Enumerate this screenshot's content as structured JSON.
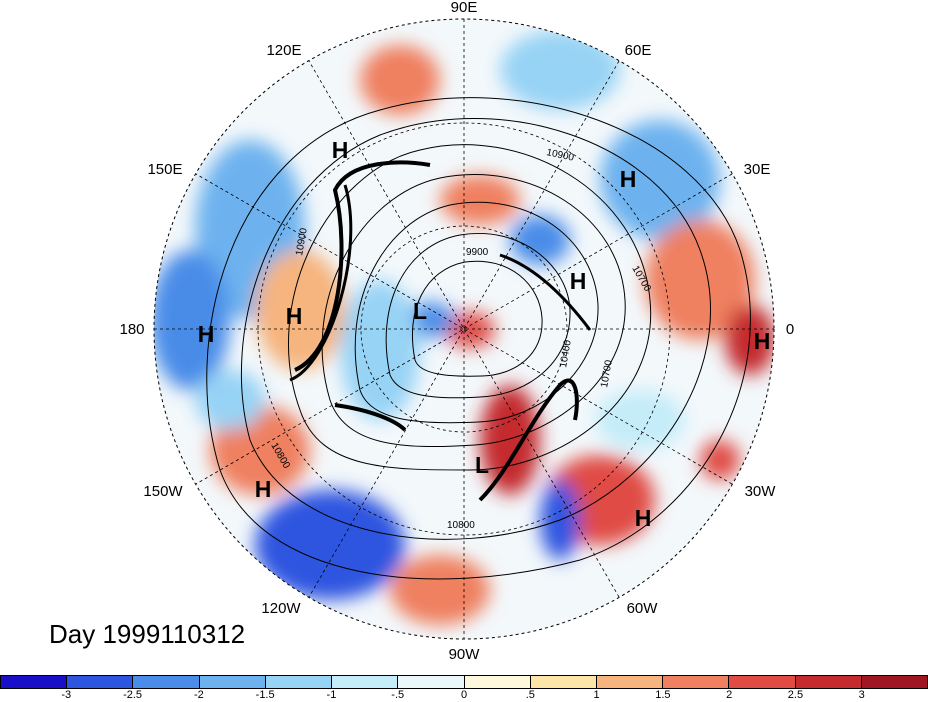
{
  "map": {
    "title": "Day 1999110312",
    "longitude_labels": [
      {
        "id": "lon-90e",
        "text": "90E"
      },
      {
        "id": "lon-60e",
        "text": "60E"
      },
      {
        "id": "lon-30e",
        "text": "30E"
      },
      {
        "id": "lon-0",
        "text": "0"
      },
      {
        "id": "lon-30w",
        "text": "30W"
      },
      {
        "id": "lon-60w",
        "text": "60W"
      },
      {
        "id": "lon-90w",
        "text": "90W"
      },
      {
        "id": "lon-120w",
        "text": "120W"
      },
      {
        "id": "lon-150w",
        "text": "150W"
      },
      {
        "id": "lon-180",
        "text": "180"
      },
      {
        "id": "lon-150e",
        "text": "150E"
      },
      {
        "id": "lon-120e",
        "text": "120E"
      }
    ],
    "pressure_centers": [
      {
        "id": "h-1",
        "text": "H"
      },
      {
        "id": "h-2",
        "text": "H"
      },
      {
        "id": "h-3",
        "text": "H"
      },
      {
        "id": "h-4",
        "text": "H"
      },
      {
        "id": "h-5",
        "text": "H"
      },
      {
        "id": "h-6",
        "text": "H"
      },
      {
        "id": "h-7",
        "text": "H"
      },
      {
        "id": "h-8",
        "text": "H"
      },
      {
        "id": "l-1",
        "text": "L"
      },
      {
        "id": "l-2",
        "text": "L"
      }
    ],
    "contour_labels": [
      {
        "id": "c-10900-a",
        "text": "10900"
      },
      {
        "id": "c-10900-b",
        "text": "10900"
      },
      {
        "id": "c-9900",
        "text": "9900"
      },
      {
        "id": "c-10700-a",
        "text": "10700"
      },
      {
        "id": "c-10700-b",
        "text": "10700"
      },
      {
        "id": "c-10400",
        "text": "10400"
      },
      {
        "id": "c-10800-a",
        "text": "10800"
      },
      {
        "id": "c-10800-b",
        "text": "10800"
      }
    ]
  },
  "colorbar": {
    "colors": [
      "#1a0fc8",
      "#2d55e0",
      "#4a8ce8",
      "#6db2ef",
      "#97d3f5",
      "#c4ecf9",
      "#eaf8fb",
      "#fdf8dc",
      "#fbe6a8",
      "#f6b47e",
      "#ef8060",
      "#e04c44",
      "#c42a2e",
      "#a01622"
    ],
    "labels": [
      "-3",
      "-2.5",
      "-2",
      "-1.5",
      "-1",
      "-.5",
      "0",
      ".5",
      "1",
      "1.5",
      "2",
      "2.5",
      "3"
    ]
  }
}
